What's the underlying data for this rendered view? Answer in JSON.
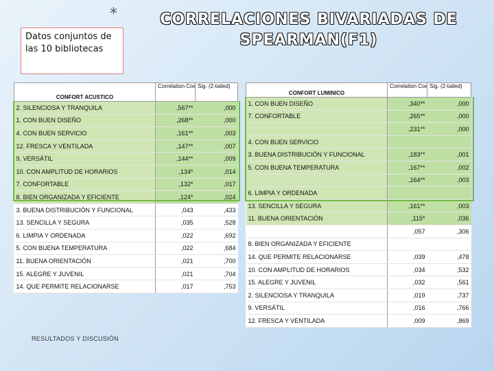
{
  "slide": {
    "star": "*",
    "note": "Datos conjuntos de las 10 bibliotecas",
    "title_line1": "CORRELACIONES BIVARIADAS DE",
    "title_line2": "SPEARMAN(F1)",
    "footer": "RESULTADOS Y DISCUSIÓN"
  },
  "table_left": {
    "header": "CONFORT ACUSTICO",
    "col_corr": "Correlation Coefficient",
    "col_sig": "Sig. (2-tailed)",
    "rows": [
      {
        "label": "2. SILENCIOSA Y TRANQUILA",
        "corr": ",567**",
        "sig": ",000"
      },
      {
        "label": "1. CON BUEN DISEÑO",
        "corr": ",268**",
        "sig": ",000"
      },
      {
        "label": "4. CON BUEN SERVICIO",
        "corr": ",161**",
        "sig": ",003"
      },
      {
        "label": "12. FRESCA Y VENTILADA",
        "corr": ",147**",
        "sig": ",007"
      },
      {
        "label": "9. VERSÁTIL",
        "corr": ",144**",
        "sig": ",009"
      },
      {
        "label": "10. CON AMPLITUD DE HORARIOS",
        "corr": ",134*",
        "sig": ",014"
      },
      {
        "label": "7. CONFORTABLE",
        "corr": ",132*",
        "sig": ",017"
      },
      {
        "label": "8. BIEN ORGANIZADA Y EFICIENTE",
        "corr": ",124*",
        "sig": ",024"
      },
      {
        "label": "3. BUENA DISTRIBUCIÓN Y FUNCIONAL",
        "corr": ",043",
        "sig": ",433"
      },
      {
        "label": "13. SENCILLA Y SEGURA",
        "corr": ",035",
        "sig": ",528"
      },
      {
        "label": "6. LIMPIA Y ORDENADA",
        "corr": ",022",
        "sig": ",692"
      },
      {
        "label": "5. CON BUENA TEMPERATURA",
        "corr": ",022",
        "sig": ",684"
      },
      {
        "label": "11. BUENA ORIENTACIÓN",
        "corr": ",021",
        "sig": ",700"
      },
      {
        "label": "15. ALEGRE Y JUVENIL",
        "corr": ",021",
        "sig": ",704"
      },
      {
        "label": "14. QUE PERMITE RELACIONARSE",
        "corr": ",017",
        "sig": ",753"
      }
    ]
  },
  "table_right": {
    "header": "CONFORT LUMINICO",
    "col_corr": "Correlation Coefficient",
    "col_sig": "Sig. (2-tailed)",
    "rows": [
      {
        "label": "1. CON BUEN DISEÑO",
        "corr": ",340**",
        "sig": ",000"
      },
      {
        "label": "7. CONFORTABLE",
        "corr": ",265**",
        "sig": ",000"
      },
      {
        "label": "",
        "corr": ",231**",
        "sig": ",000"
      },
      {
        "label": "4. CON BUEN SERVICIO",
        "corr": "",
        "sig": ""
      },
      {
        "label": "3. BUENA DISTRIBUCIÓN Y FUNCIONAL",
        "corr": ",183**",
        "sig": ",001"
      },
      {
        "label": "5. CON BUENA TEMPERATURA",
        "corr": ",167**",
        "sig": ",002"
      },
      {
        "label": "",
        "corr": ",164**",
        "sig": ",003"
      },
      {
        "label": "6. LIMPIA Y ORDENADA",
        "corr": "",
        "sig": ""
      },
      {
        "label": "13. SENCILLA Y SEGURA",
        "corr": ",161**",
        "sig": ",003"
      },
      {
        "label": "11. BUENA ORIENTACIÓN",
        "corr": ",115*",
        "sig": ",036"
      },
      {
        "label": "",
        "corr": ",057",
        "sig": ",306"
      },
      {
        "label": "8. BIEN ORGANIZADA Y EFICIENTE",
        "corr": "",
        "sig": ""
      },
      {
        "label": "14. QUE PERMITE RELACIONARSE",
        "corr": ",039",
        "sig": ",478"
      },
      {
        "label": "10. CON AMPLITUD DE HORARIOS",
        "corr": ",034",
        "sig": ",532"
      },
      {
        "label": "15. ALEGRE Y JUVENIL",
        "corr": ",032",
        "sig": ",561"
      },
      {
        "label": "2. SILENCIOSA Y TRANQUILA",
        "corr": ",019",
        "sig": ",737"
      },
      {
        "label": "9. VERSÁTIL",
        "corr": ",016",
        "sig": ",766"
      },
      {
        "label": "12. FRESCA Y VENTILADA",
        "corr": ",009",
        "sig": ",869"
      }
    ]
  }
}
